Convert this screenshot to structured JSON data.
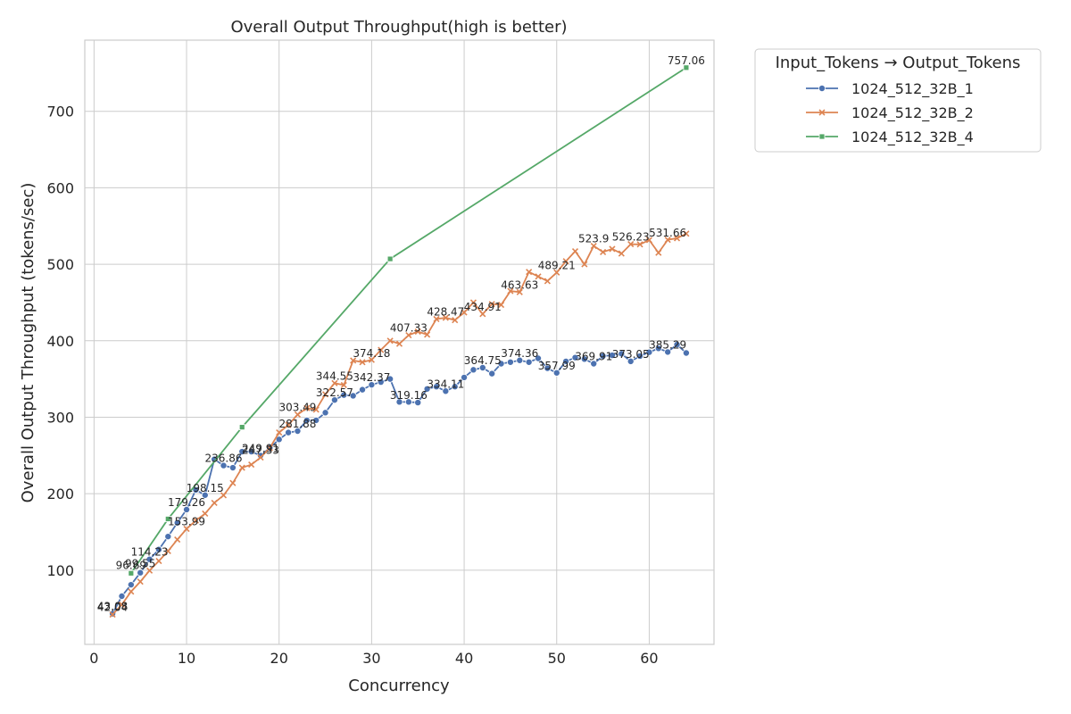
{
  "chart_data": {
    "type": "line",
    "title": "Overall Output Throughput(high is better)",
    "xlabel": "Concurrency",
    "ylabel": "Overall Output Throughput (tokens/sec)",
    "xlim": [
      -1,
      67
    ],
    "ylim": [
      3,
      793
    ],
    "xticks": [
      0,
      10,
      20,
      30,
      40,
      50,
      60
    ],
    "yticks": [
      100,
      200,
      300,
      400,
      500,
      600,
      700
    ],
    "grid": true,
    "legend": {
      "title": "Input_Tokens → Output_Tokens",
      "placement": "outside-top-right"
    },
    "series": [
      {
        "name": "1024_512_32B_1",
        "color": "#4c72b0",
        "marker": "circle",
        "x": [
          2,
          3,
          4,
          5,
          6,
          7,
          8,
          9,
          10,
          11,
          12,
          13,
          14,
          15,
          16,
          17,
          18,
          19,
          20,
          21,
          22,
          23,
          24,
          25,
          26,
          27,
          28,
          29,
          30,
          31,
          32,
          33,
          34,
          35,
          36,
          37,
          38,
          39,
          40,
          41,
          42,
          43,
          44,
          45,
          46,
          47,
          48,
          49,
          50,
          51,
          52,
          53,
          54,
          55,
          56,
          57,
          58,
          59,
          60,
          61,
          62,
          63,
          64
        ],
        "y": [
          43.08,
          66,
          81,
          96.69,
          114.23,
          127,
          144,
          162,
          179.26,
          205,
          198.15,
          245,
          236.86,
          234,
          255,
          255,
          249.91,
          260,
          271,
          280,
          281.88,
          296,
          296,
          306,
          322.57,
          329,
          328,
          336,
          342.37,
          346,
          350,
          320,
          320,
          319.16,
          337,
          340,
          334.11,
          340,
          352,
          362,
          364.75,
          357,
          370,
          372,
          374.36,
          372,
          377,
          364,
          357.99,
          373,
          378,
          376,
          370,
          380,
          381,
          383,
          373.05,
          380,
          385,
          390,
          385.29,
          395,
          384
        ]
      },
      {
        "name": "1024_512_32B_2",
        "color": "#dd8452",
        "marker": "x",
        "x": [
          2,
          3,
          4,
          5,
          6,
          7,
          8,
          9,
          10,
          11,
          12,
          13,
          14,
          15,
          16,
          17,
          18,
          19,
          20,
          21,
          22,
          23,
          24,
          25,
          26,
          27,
          28,
          29,
          30,
          31,
          32,
          33,
          34,
          35,
          36,
          37,
          38,
          39,
          40,
          41,
          42,
          43,
          44,
          45,
          46,
          47,
          48,
          49,
          50,
          51,
          52,
          53,
          54,
          55,
          56,
          57,
          58,
          59,
          60,
          61,
          62,
          63,
          64
        ],
        "y": [
          42,
          55,
          72,
          85,
          99.55,
          112,
          125,
          140,
          153.99,
          165,
          174,
          188,
          198,
          214,
          234,
          238,
          247.33,
          260,
          280,
          290,
          303.49,
          312,
          310,
          330,
          344.55,
          342,
          374.18,
          372,
          375,
          388,
          400,
          396,
          407.33,
          412,
          408,
          428.47,
          430,
          427,
          437,
          450,
          434.91,
          448,
          447,
          465,
          463.63,
          490,
          484,
          478,
          489.21,
          504,
          517,
          500,
          523.9,
          516,
          520,
          514,
          526.23,
          526,
          531.66,
          515,
          532,
          534,
          540
        ]
      },
      {
        "name": "1024_512_32B_4",
        "color": "#55a868",
        "marker": "square",
        "x": [
          4,
          8,
          16,
          32,
          64
        ],
        "y": [
          96,
          167,
          287,
          507,
          757.06
        ]
      }
    ],
    "annotations": [
      {
        "x": 2,
        "y": 43.08,
        "text": "43.08"
      },
      {
        "x": 2,
        "y": 42,
        "text": "42.04"
      },
      {
        "x": 4,
        "y": 96.69,
        "text": "96.69"
      },
      {
        "x": 5,
        "y": 99.55,
        "text": "99.55"
      },
      {
        "x": 6,
        "y": 114.23,
        "text": "114.23"
      },
      {
        "x": 10,
        "y": 153.99,
        "text": "153.99"
      },
      {
        "x": 10,
        "y": 179.26,
        "text": "179.26"
      },
      {
        "x": 12,
        "y": 198.15,
        "text": "198.15"
      },
      {
        "x": 14,
        "y": 236.86,
        "text": "236.86"
      },
      {
        "x": 18,
        "y": 249.91,
        "text": "249.91"
      },
      {
        "x": 18,
        "y": 247.33,
        "text": "247.33"
      },
      {
        "x": 22,
        "y": 281.88,
        "text": "281.88"
      },
      {
        "x": 22,
        "y": 303.49,
        "text": "303.49"
      },
      {
        "x": 26,
        "y": 322.57,
        "text": "322.57"
      },
      {
        "x": 26,
        "y": 344.55,
        "text": "344.55"
      },
      {
        "x": 30,
        "y": 342.37,
        "text": "342.37"
      },
      {
        "x": 30,
        "y": 374.18,
        "text": "374.18"
      },
      {
        "x": 34,
        "y": 319.16,
        "text": "319.16"
      },
      {
        "x": 34,
        "y": 407.33,
        "text": "407.33"
      },
      {
        "x": 38,
        "y": 334.11,
        "text": "334.11"
      },
      {
        "x": 38,
        "y": 428.47,
        "text": "428.47"
      },
      {
        "x": 42,
        "y": 364.75,
        "text": "364.75"
      },
      {
        "x": 42,
        "y": 434.91,
        "text": "434.91"
      },
      {
        "x": 46,
        "y": 374.36,
        "text": "374.36"
      },
      {
        "x": 46,
        "y": 463.63,
        "text": "463.63"
      },
      {
        "x": 50,
        "y": 357.99,
        "text": "357.99"
      },
      {
        "x": 50,
        "y": 489.21,
        "text": "489.21"
      },
      {
        "x": 54,
        "y": 369.91,
        "text": "369.91"
      },
      {
        "x": 54,
        "y": 523.9,
        "text": "523.9"
      },
      {
        "x": 58,
        "y": 373.05,
        "text": "373.05"
      },
      {
        "x": 58,
        "y": 526.23,
        "text": "526.23"
      },
      {
        "x": 62,
        "y": 385.29,
        "text": "385.29"
      },
      {
        "x": 62,
        "y": 531.66,
        "text": "531.66"
      },
      {
        "x": 64,
        "y": 757.06,
        "text": "757.06"
      }
    ]
  }
}
